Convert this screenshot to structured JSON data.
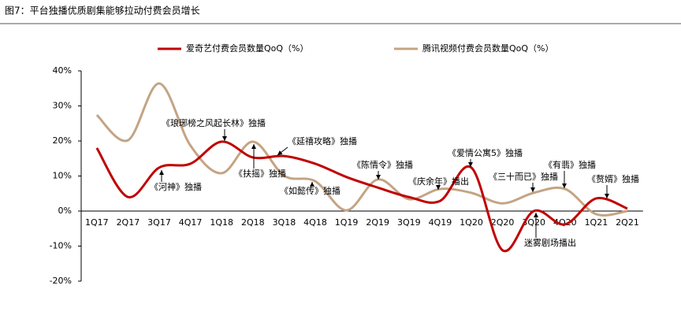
{
  "chart_data": {
    "type": "line",
    "title": "图7：平台独播优质剧集能够拉动付费会员增长",
    "categories": [
      "1Q17",
      "2Q17",
      "3Q17",
      "4Q17",
      "1Q18",
      "2Q18",
      "3Q18",
      "4Q18",
      "1Q19",
      "2Q19",
      "3Q19",
      "4Q19",
      "1Q20",
      "2Q20",
      "3Q20",
      "4Q20",
      "1Q21",
      "2Q21"
    ],
    "series": [
      {
        "name": "爱奇艺付费会员数量QoQ（%）",
        "color": "#c00000",
        "values": [
          18.0,
          4.0,
          12.4,
          13.5,
          19.8,
          15.3,
          15.7,
          13.5,
          9.7,
          6.7,
          4.0,
          2.9,
          12.4,
          -11.2,
          0.0,
          -3.8,
          3.6,
          0.7
        ]
      },
      {
        "name": "腾讯视频付费会员数量QoQ（%）",
        "color": "#c4a484",
        "values": [
          27.4,
          20.2,
          36.4,
          18.7,
          10.8,
          19.8,
          10.1,
          8.5,
          0.2,
          9.0,
          3.4,
          6.3,
          5.2,
          2.2,
          5.2,
          6.3,
          -0.9,
          0.0
        ]
      }
    ],
    "ylim": [
      -20,
      40
    ],
    "yticks": [
      {
        "value": -20,
        "label": "-20%"
      },
      {
        "value": -10,
        "label": "-10%"
      },
      {
        "value": 0,
        "label": "0%"
      },
      {
        "value": 10,
        "label": "10%"
      },
      {
        "value": 20,
        "label": "20%"
      },
      {
        "value": 30,
        "label": "30%"
      },
      {
        "value": 40,
        "label": "40%"
      }
    ],
    "legend": "top",
    "annotations": [
      "《河神》独播",
      "《琅琊榜之风起长林》独播",
      "《扶摇》独播",
      "《延禧攻略》独播",
      "《如懿传》独播",
      "《陈情令》独播",
      "《庆余年》播出",
      "《爱情公寓5》独播",
      "《三十而已》独播",
      "《有翡》独播",
      "《赘婿》独播",
      "迷雾剧场播出"
    ]
  }
}
